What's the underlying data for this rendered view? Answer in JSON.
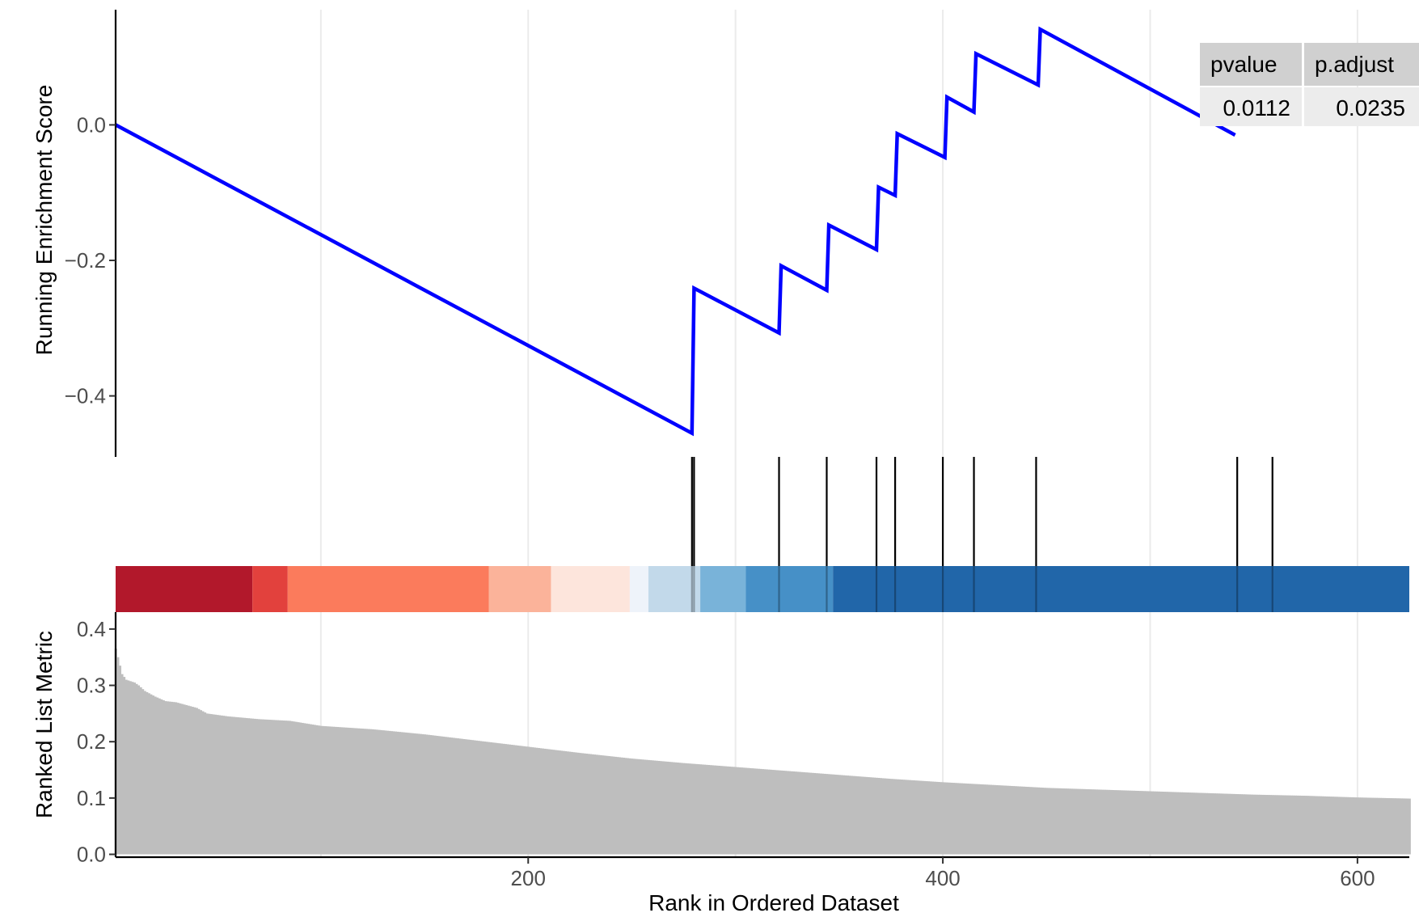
{
  "chart_data": {
    "type": "line",
    "panels": {
      "enrichment": {
        "ylabel": "Running Enrichment Score",
        "y_ticks": [
          0.0,
          -0.2,
          -0.4
        ],
        "y_tick_labels": [
          "0.0",
          "−0.2",
          "−0.4"
        ],
        "ylim": [
          -0.49,
          0.17
        ],
        "series": [
          {
            "color": "#0000ff",
            "x": [
              1,
              279,
              280,
              321,
              322,
              344,
              345,
              368,
              369,
              377,
              378,
              401,
              402,
              415,
              416,
              446,
              447,
              541
            ],
            "y": [
              0.0,
              -0.455,
              -0.241,
              -0.307,
              -0.208,
              -0.244,
              -0.148,
              -0.184,
              -0.092,
              -0.104,
              -0.013,
              -0.048,
              0.041,
              0.019,
              0.105,
              0.059,
              0.141,
              -0.015
            ]
          }
        ]
      },
      "gene_hits": {
        "x": [
          279,
          280,
          321,
          344,
          368,
          377,
          400,
          415,
          445,
          542,
          559
        ]
      },
      "color_bar": {
        "segments": [
          {
            "from": 1,
            "to": 67,
            "color": "#b2182b"
          },
          {
            "from": 67,
            "to": 84,
            "color": "#e2413d"
          },
          {
            "from": 84,
            "to": 181,
            "color": "#fb7b5c"
          },
          {
            "from": 181,
            "to": 211,
            "color": "#fbb39a"
          },
          {
            "from": 211,
            "to": 249,
            "color": "#fde5dc"
          },
          {
            "from": 249,
            "to": 258,
            "color": "#eef3fa"
          },
          {
            "from": 258,
            "to": 283,
            "color": "#c2d9ea"
          },
          {
            "from": 283,
            "to": 305,
            "color": "#79b3d9"
          },
          {
            "from": 305,
            "to": 347,
            "color": "#4690c7"
          },
          {
            "from": 347,
            "to": 625,
            "color": "#2166a9"
          }
        ]
      },
      "ranked": {
        "ylabel": "Ranked List Metric",
        "y_ticks": [
          0.0,
          0.1,
          0.2,
          0.3,
          0.4
        ],
        "y_tick_labels": [
          "0.0",
          "0.1",
          "0.2",
          "0.3",
          "0.4"
        ],
        "ylim": [
          -0.005,
          0.43
        ],
        "bar_color": "#bebebe",
        "profile": [
          [
            1,
            0.365
          ],
          [
            2,
            0.35
          ],
          [
            3,
            0.335
          ],
          [
            4,
            0.32
          ],
          [
            6,
            0.31
          ],
          [
            10,
            0.305
          ],
          [
            12,
            0.3
          ],
          [
            15,
            0.29
          ],
          [
            20,
            0.28
          ],
          [
            25,
            0.272
          ],
          [
            30,
            0.27
          ],
          [
            35,
            0.265
          ],
          [
            40,
            0.26
          ],
          [
            45,
            0.25
          ],
          [
            55,
            0.245
          ],
          [
            70,
            0.24
          ],
          [
            85,
            0.237
          ],
          [
            100,
            0.228
          ],
          [
            125,
            0.222
          ],
          [
            150,
            0.213
          ],
          [
            175,
            0.202
          ],
          [
            200,
            0.191
          ],
          [
            225,
            0.18
          ],
          [
            250,
            0.17
          ],
          [
            275,
            0.162
          ],
          [
            300,
            0.155
          ],
          [
            325,
            0.148
          ],
          [
            350,
            0.141
          ],
          [
            375,
            0.134
          ],
          [
            400,
            0.128
          ],
          [
            425,
            0.123
          ],
          [
            450,
            0.118
          ],
          [
            475,
            0.115
          ],
          [
            500,
            0.112
          ],
          [
            525,
            0.109
          ],
          [
            550,
            0.106
          ],
          [
            575,
            0.104
          ],
          [
            600,
            0.101
          ],
          [
            625,
            0.099
          ]
        ]
      }
    },
    "xlabel": "Rank in Ordered Dataset",
    "x_ticks": [
      200,
      400,
      600
    ],
    "x_tick_labels": [
      "200",
      "400",
      "600"
    ],
    "xlim": [
      1,
      625
    ],
    "grid": true,
    "table": {
      "headers": [
        "pvalue",
        "p.adjust"
      ],
      "values": [
        "0.0112",
        "0.0235"
      ]
    }
  }
}
